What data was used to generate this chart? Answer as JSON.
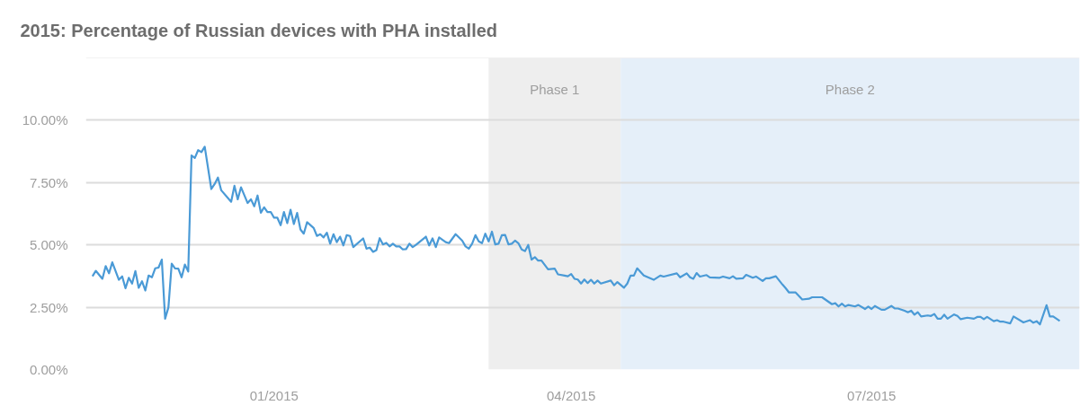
{
  "chart_data": {
    "type": "line",
    "title": "2015: Percentage of Russian devices with PHA installed",
    "x": [
      "2014-11-07",
      "2014-11-08",
      "2014-11-10",
      "2014-11-11",
      "2014-11-12",
      "2014-11-13",
      "2014-11-15",
      "2014-11-16",
      "2014-11-17",
      "2014-11-18",
      "2014-11-19",
      "2014-11-20",
      "2014-11-21",
      "2014-11-22",
      "2014-11-23",
      "2014-11-24",
      "2014-11-25",
      "2014-11-26",
      "2014-11-27",
      "2014-11-28",
      "2014-11-29",
      "2014-11-30",
      "2014-12-01",
      "2014-12-02",
      "2014-12-03",
      "2014-12-04",
      "2014-12-05",
      "2014-12-06",
      "2014-12-07",
      "2014-12-08",
      "2014-12-09",
      "2014-12-10",
      "2014-12-11",
      "2014-12-13",
      "2014-12-14",
      "2014-12-15",
      "2014-12-16",
      "2014-12-19",
      "2014-12-20",
      "2014-12-21",
      "2014-12-22",
      "2014-12-24",
      "2014-12-25",
      "2014-12-26",
      "2014-12-27",
      "2014-12-28",
      "2014-12-29",
      "2014-12-30",
      "2014-12-31",
      "2015-01-01",
      "2015-01-02",
      "2015-01-03",
      "2015-01-04",
      "2015-01-05",
      "2015-01-06",
      "2015-01-07",
      "2015-01-08",
      "2015-01-09",
      "2015-01-10",
      "2015-01-11",
      "2015-01-13",
      "2015-01-14",
      "2015-01-15",
      "2015-01-16",
      "2015-01-17",
      "2015-01-18",
      "2015-01-19",
      "2015-01-20",
      "2015-01-21",
      "2015-01-22",
      "2015-01-23",
      "2015-01-24",
      "2015-01-25",
      "2015-01-28",
      "2015-01-29",
      "2015-01-30",
      "2015-01-31",
      "2015-02-01",
      "2015-02-02",
      "2015-02-03",
      "2015-02-04",
      "2015-02-05",
      "2015-02-06",
      "2015-02-07",
      "2015-02-08",
      "2015-02-09",
      "2015-02-10",
      "2015-02-11",
      "2015-02-12",
      "2015-02-13",
      "2015-02-16",
      "2015-02-17",
      "2015-02-18",
      "2015-02-19",
      "2015-02-20",
      "2015-02-22",
      "2015-02-23",
      "2015-02-25",
      "2015-02-27",
      "2015-02-28",
      "2015-03-01",
      "2015-03-02",
      "2015-03-03",
      "2015-03-04",
      "2015-03-05",
      "2015-03-06",
      "2015-03-07",
      "2015-03-08",
      "2015-03-09",
      "2015-03-10",
      "2015-03-11",
      "2015-03-12",
      "2015-03-13",
      "2015-03-14",
      "2015-03-15",
      "2015-03-16",
      "2015-03-17",
      "2015-03-18",
      "2015-03-19",
      "2015-03-20",
      "2015-03-21",
      "2015-03-22",
      "2015-03-23",
      "2015-03-25",
      "2015-03-27",
      "2015-03-28",
      "2015-03-30",
      "2015-03-31",
      "2015-04-01",
      "2015-04-02",
      "2015-04-03",
      "2015-04-04",
      "2015-04-05",
      "2015-04-06",
      "2015-04-07",
      "2015-04-08",
      "2015-04-09",
      "2015-04-10",
      "2015-04-13",
      "2015-04-14",
      "2015-04-15",
      "2015-04-17",
      "2015-04-18",
      "2015-04-19",
      "2015-04-20",
      "2015-04-21",
      "2015-04-23",
      "2015-04-26",
      "2015-04-28",
      "2015-04-29",
      "2015-05-03",
      "2015-05-04",
      "2015-05-06",
      "2015-05-07",
      "2015-05-08",
      "2015-05-09",
      "2015-05-10",
      "2015-05-12",
      "2015-05-13",
      "2015-05-16",
      "2015-05-17",
      "2015-05-19",
      "2015-05-20",
      "2015-05-21",
      "2015-05-23",
      "2015-05-24",
      "2015-05-26",
      "2015-05-27",
      "2015-05-29",
      "2015-05-30",
      "2015-05-31",
      "2015-06-02",
      "2015-06-04",
      "2015-06-05",
      "2015-06-06",
      "2015-06-08",
      "2015-06-10",
      "2015-06-12",
      "2015-06-13",
      "2015-06-15",
      "2015-06-16",
      "2015-06-19",
      "2015-06-20",
      "2015-06-21",
      "2015-06-22",
      "2015-06-23",
      "2015-06-24",
      "2015-06-26",
      "2015-06-27",
      "2015-06-29",
      "2015-06-30",
      "2015-07-01",
      "2015-07-02",
      "2015-07-04",
      "2015-07-05",
      "2015-07-07",
      "2015-07-08",
      "2015-07-09",
      "2015-07-11",
      "2015-07-12",
      "2015-07-13",
      "2015-07-14",
      "2015-07-15",
      "2015-07-16",
      "2015-07-18",
      "2015-07-19",
      "2015-07-20",
      "2015-07-21",
      "2015-07-22",
      "2015-07-23",
      "2015-07-24",
      "2015-07-26",
      "2015-07-27",
      "2015-07-28",
      "2015-07-30",
      "2015-08-01",
      "2015-08-02",
      "2015-08-03",
      "2015-08-04",
      "2015-08-05",
      "2015-08-07",
      "2015-08-08",
      "2015-08-09",
      "2015-08-10",
      "2015-08-12",
      "2015-08-13",
      "2015-08-16",
      "2015-08-18",
      "2015-08-19",
      "2015-08-20",
      "2015-08-21",
      "2015-08-23",
      "2015-08-24",
      "2015-08-25",
      "2015-08-27"
    ],
    "series": [
      {
        "color": "#4a9ad6",
        "values": [
          3.74,
          3.96,
          3.64,
          4.15,
          3.86,
          4.3,
          3.6,
          3.74,
          3.26,
          3.68,
          3.45,
          3.95,
          3.28,
          3.54,
          3.17,
          3.77,
          3.7,
          4.06,
          4.09,
          4.41,
          2.04,
          2.49,
          4.25,
          4.06,
          4.05,
          3.7,
          4.21,
          3.93,
          8.59,
          8.49,
          8.8,
          8.72,
          8.94,
          7.24,
          7.44,
          7.7,
          7.19,
          6.73,
          7.37,
          6.83,
          7.31,
          6.68,
          6.83,
          6.55,
          6.98,
          6.29,
          6.51,
          6.32,
          6.32,
          6.09,
          6.09,
          5.79,
          6.32,
          5.87,
          6.41,
          5.84,
          6.28,
          5.62,
          5.45,
          5.91,
          5.68,
          5.36,
          5.43,
          5.3,
          5.49,
          5.05,
          5.43,
          5.11,
          5.33,
          4.98,
          5.39,
          5.36,
          4.91,
          5.26,
          4.85,
          4.89,
          4.72,
          4.79,
          5.27,
          5.02,
          5.08,
          4.94,
          5.05,
          4.94,
          4.94,
          4.82,
          4.83,
          5.05,
          4.91,
          5.0,
          5.33,
          4.98,
          5.26,
          4.91,
          5.3,
          5.11,
          5.07,
          5.43,
          5.17,
          4.94,
          4.85,
          5.05,
          5.39,
          5.14,
          5.07,
          5.45,
          5.14,
          5.53,
          5.02,
          5.05,
          5.39,
          5.4,
          5.02,
          5.05,
          5.17,
          5.07,
          4.82,
          4.75,
          5.0,
          4.41,
          4.51,
          4.37,
          4.37,
          4.02,
          4.05,
          3.82,
          3.77,
          3.74,
          3.83,
          3.64,
          3.61,
          3.45,
          3.61,
          3.47,
          3.6,
          3.45,
          3.57,
          3.45,
          3.57,
          3.38,
          3.51,
          3.28,
          3.45,
          3.77,
          3.77,
          4.06,
          3.77,
          3.6,
          3.77,
          3.73,
          3.86,
          3.7,
          3.86,
          3.7,
          3.64,
          3.87,
          3.73,
          3.79,
          3.7,
          3.68,
          3.73,
          3.66,
          3.74,
          3.64,
          3.66,
          3.8,
          3.68,
          3.73,
          3.55,
          3.66,
          3.66,
          3.74,
          3.41,
          3.26,
          3.09,
          3.09,
          2.81,
          2.84,
          2.9,
          2.9,
          2.9,
          2.62,
          2.66,
          2.53,
          2.64,
          2.53,
          2.59,
          2.53,
          2.59,
          2.43,
          2.53,
          2.43,
          2.55,
          2.4,
          2.4,
          2.55,
          2.45,
          2.45,
          2.36,
          2.3,
          2.36,
          2.2,
          2.3,
          2.13,
          2.17,
          2.15,
          2.23,
          2.04,
          2.04,
          2.2,
          2.04,
          2.21,
          2.15,
          2.02,
          2.08,
          2.04,
          2.11,
          2.11,
          2.02,
          2.11,
          1.94,
          1.98,
          1.92,
          1.92,
          1.85,
          2.13,
          1.89,
          1.98,
          1.88,
          1.94,
          1.81,
          2.58,
          2.13,
          2.13,
          1.95
        ]
      }
    ],
    "xlim": [
      "2014-11-05",
      "2015-09-02"
    ],
    "xticks": [
      {
        "value": "2015-01-01",
        "label": "01/2015"
      },
      {
        "value": "2015-04-01",
        "label": "04/2015"
      },
      {
        "value": "2015-07-01",
        "label": "07/2015"
      }
    ],
    "ylim": [
      0,
      12.5
    ],
    "yticks": [
      {
        "value": 0,
        "label": "0.00%"
      },
      {
        "value": 2.5,
        "label": "2.50%"
      },
      {
        "value": 5,
        "label": "5.00%"
      },
      {
        "value": 7.5,
        "label": "7.50%"
      },
      {
        "value": 10,
        "label": "10.00%"
      }
    ],
    "bands": [
      {
        "axis": "x",
        "from": "2015-03-07",
        "to": "2015-04-16",
        "label": "Phase 1",
        "color": "#eeeeee"
      },
      {
        "axis": "x",
        "from": "2015-04-16",
        "to": "2015-09-02",
        "label": "Phase 2",
        "color": "#e5eff9"
      }
    ],
    "grid": "y",
    "marker": "none",
    "line_style": "solid"
  }
}
